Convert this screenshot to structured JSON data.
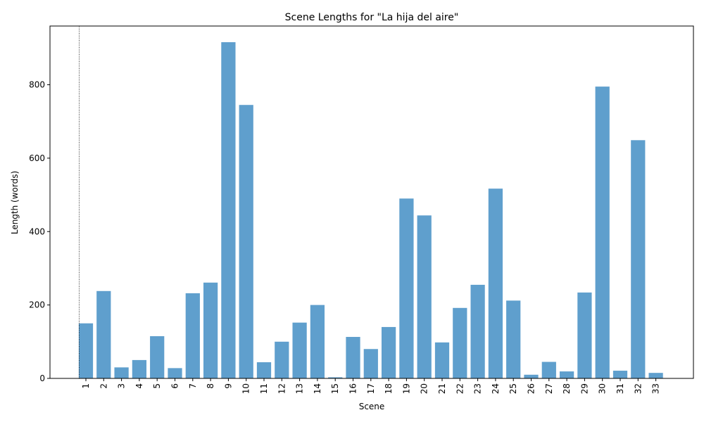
{
  "chart_data": {
    "type": "bar",
    "title": "Scene Lengths for \"La hija del aire\"",
    "xlabel": "Scene",
    "ylabel": "Length (words)",
    "categories": [
      "1",
      "2",
      "3",
      "4",
      "5",
      "6",
      "7",
      "8",
      "9",
      "10",
      "11",
      "12",
      "13",
      "14",
      "15",
      "16",
      "17",
      "18",
      "19",
      "20",
      "21",
      "22",
      "23",
      "24",
      "25",
      "26",
      "27",
      "28",
      "29",
      "30",
      "31",
      "32",
      "33"
    ],
    "values": [
      150,
      238,
      30,
      50,
      115,
      28,
      232,
      261,
      916,
      745,
      44,
      100,
      152,
      200,
      3,
      113,
      80,
      140,
      490,
      444,
      98,
      192,
      255,
      517,
      212,
      10,
      45,
      19,
      234,
      795,
      21,
      649,
      15
    ],
    "ylim": [
      0,
      960
    ],
    "yticks": [
      0,
      200,
      400,
      600,
      800
    ],
    "bar_color": "#5f9fcd",
    "marker_line": {
      "x_category": "1",
      "style": "dotted",
      "color": "#000000"
    },
    "grid": false,
    "legend": "none"
  }
}
